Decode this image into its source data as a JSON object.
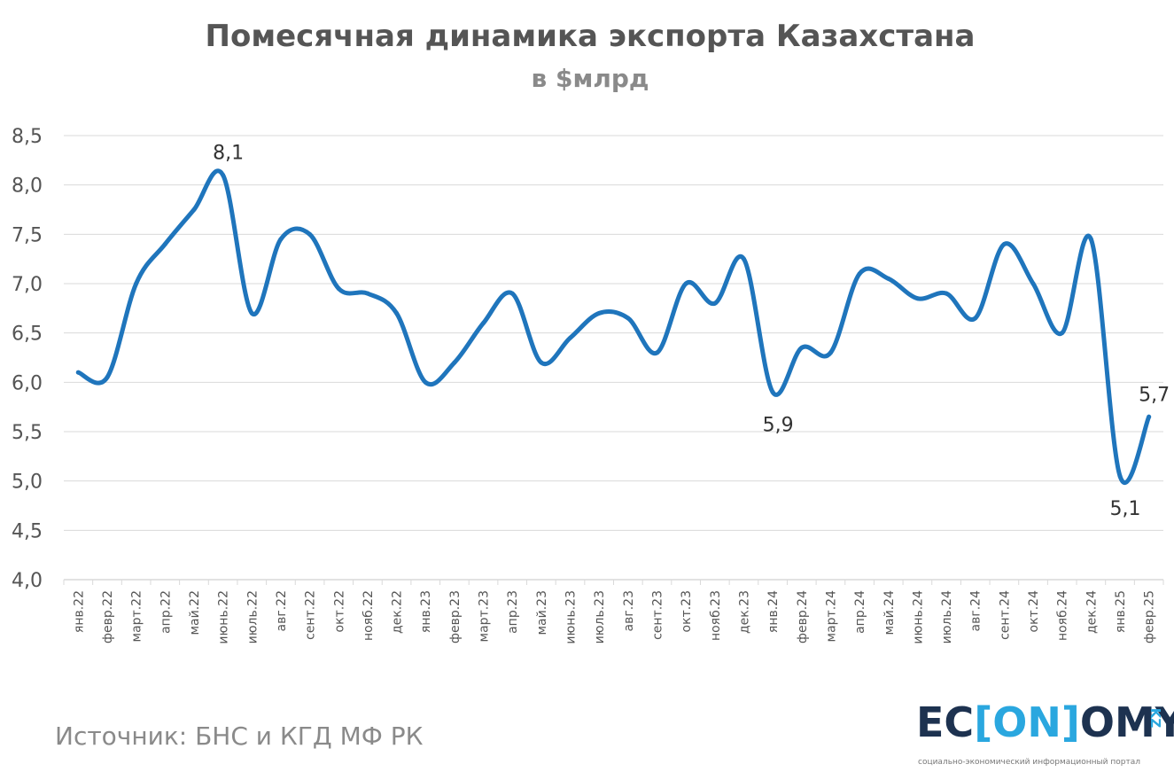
{
  "colors": {
    "line": "#1f75bc",
    "grid": "#d9d9d9",
    "logo_dark": "#1d3250",
    "logo_accent": "#2aa7df"
  },
  "source_text": "Источник: БНС и КГД МФ РК",
  "logo": {
    "part1": "EC",
    "bracket_open": "[",
    "middle": "ON",
    "bracket_close": "]",
    "part2": "OMY",
    "suffix": "KZ",
    "tagline": "социально-экономический информационный портал"
  },
  "chart_data": {
    "type": "line",
    "title": "Помесячная динамика экспорта Казахстана",
    "subtitle": "в $млрд",
    "xlabel": "",
    "ylabel": "",
    "ylim": [
      4.0,
      8.5
    ],
    "ytick_labels": [
      "4,0",
      "4,5",
      "5,0",
      "5,5",
      "6,0",
      "6,5",
      "7,0",
      "7,5",
      "8,0",
      "8,5"
    ],
    "grid": true,
    "categories": [
      "янв.22",
      "февр.22",
      "март.22",
      "апр.22",
      "май.22",
      "июнь.22",
      "июль.22",
      "авг.22",
      "сент.22",
      "окт.22",
      "нояб.22",
      "дек.22",
      "янв.23",
      "февр.23",
      "март.23",
      "апр.23",
      "май.23",
      "июнь.23",
      "июль.23",
      "авг.23",
      "сент.23",
      "окт.23",
      "нояб.23",
      "дек.23",
      "янв.24",
      "февр.24",
      "март.24",
      "апр.24",
      "май.24",
      "июнь.24",
      "июль.24",
      "авг.24",
      "сент.24",
      "окт.24",
      "нояб.24",
      "дек.24",
      "янв.25",
      "февр.25"
    ],
    "series": [
      {
        "values": [
          6.1,
          6.05,
          7.0,
          7.4,
          7.75,
          8.1,
          6.7,
          7.45,
          7.5,
          6.95,
          6.9,
          6.7,
          6.0,
          6.2,
          6.6,
          6.9,
          6.2,
          6.45,
          6.7,
          6.65,
          6.3,
          7.0,
          6.8,
          7.25,
          5.9,
          6.35,
          6.3,
          7.1,
          7.05,
          6.85,
          6.9,
          6.65,
          7.4,
          7.0,
          6.5,
          7.45,
          5.05,
          5.65
        ]
      }
    ],
    "data_labels": [
      {
        "index": 5,
        "text": "8,1",
        "position": "above"
      },
      {
        "index": 24,
        "text": "5,9",
        "position": "below"
      },
      {
        "index": 36,
        "text": "5,1",
        "position": "below"
      },
      {
        "index": 37,
        "text": "5,7",
        "position": "above"
      }
    ]
  }
}
